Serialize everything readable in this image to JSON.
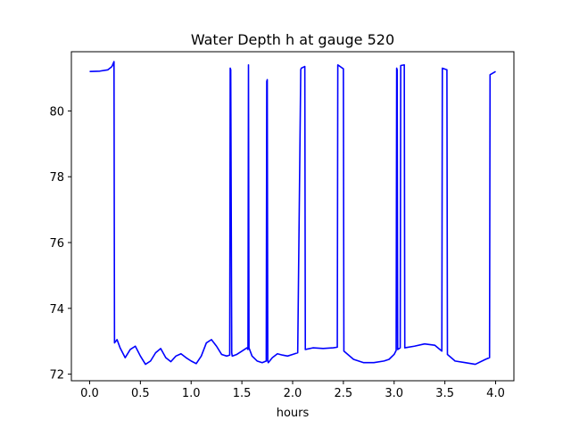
{
  "chart_data": {
    "type": "line",
    "title": "Water Depth h at gauge 520",
    "xlabel": "hours",
    "ylabel": "",
    "xlim": [
      -0.18,
      4.18
    ],
    "ylim": [
      71.8,
      81.8
    ],
    "xticks": [
      0.0,
      0.5,
      1.0,
      1.5,
      2.0,
      2.5,
      3.0,
      3.5,
      4.0
    ],
    "xtick_labels": [
      "0.0",
      "0.5",
      "1.0",
      "1.5",
      "2.0",
      "2.5",
      "3.0",
      "3.5",
      "4.0"
    ],
    "yticks": [
      72,
      74,
      76,
      78,
      80
    ],
    "ytick_labels": [
      "72",
      "74",
      "76",
      "78",
      "80"
    ],
    "grid": false,
    "series": [
      {
        "color": "#0000ff",
        "x": [
          0.0,
          0.1,
          0.18,
          0.22,
          0.24,
          0.245,
          0.27,
          0.3,
          0.35,
          0.4,
          0.45,
          0.5,
          0.55,
          0.6,
          0.65,
          0.7,
          0.75,
          0.8,
          0.85,
          0.9,
          0.95,
          1.0,
          1.05,
          1.1,
          1.15,
          1.2,
          1.25,
          1.3,
          1.35,
          1.38,
          1.385,
          1.39,
          1.4,
          1.405,
          1.45,
          1.5,
          1.55,
          1.56,
          1.565,
          1.57,
          1.6,
          1.65,
          1.7,
          1.74,
          1.745,
          1.75,
          1.755,
          1.76,
          1.8,
          1.85,
          1.9,
          1.95,
          2.0,
          2.05,
          2.08,
          2.085,
          2.12,
          2.125,
          2.2,
          2.3,
          2.4,
          2.44,
          2.445,
          2.5,
          2.505,
          2.6,
          2.7,
          2.8,
          2.9,
          2.95,
          3.0,
          3.02,
          3.025,
          3.03,
          3.035,
          3.06,
          3.065,
          3.1,
          3.105,
          3.2,
          3.3,
          3.4,
          3.47,
          3.475,
          3.52,
          3.525,
          3.6,
          3.7,
          3.8,
          3.9,
          3.94,
          3.945,
          4.0
        ],
        "y": [
          81.2,
          81.21,
          81.25,
          81.35,
          81.5,
          72.95,
          73.05,
          72.8,
          72.5,
          72.75,
          72.85,
          72.55,
          72.3,
          72.4,
          72.65,
          72.78,
          72.5,
          72.38,
          72.55,
          72.62,
          72.5,
          72.4,
          72.32,
          72.55,
          72.95,
          73.05,
          72.85,
          72.6,
          72.55,
          72.58,
          81.3,
          81.25,
          72.65,
          72.55,
          72.6,
          72.7,
          72.8,
          72.75,
          81.4,
          72.8,
          72.55,
          72.4,
          72.35,
          72.4,
          80.9,
          80.95,
          72.4,
          72.35,
          72.5,
          72.62,
          72.58,
          72.55,
          72.6,
          72.65,
          81.25,
          81.3,
          81.35,
          72.75,
          72.8,
          72.78,
          72.8,
          72.82,
          81.4,
          81.28,
          72.7,
          72.45,
          72.35,
          72.35,
          72.4,
          72.45,
          72.6,
          72.72,
          81.3,
          81.25,
          72.75,
          72.8,
          81.38,
          81.4,
          72.8,
          72.85,
          72.92,
          72.88,
          72.7,
          81.3,
          81.25,
          72.6,
          72.4,
          72.35,
          72.3,
          72.45,
          72.5,
          81.1,
          81.2
        ]
      }
    ]
  }
}
